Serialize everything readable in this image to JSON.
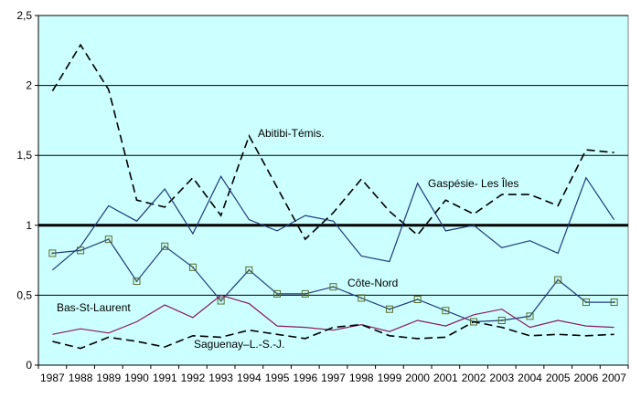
{
  "chart_data": {
    "type": "line",
    "title": "",
    "xlabel": "",
    "ylabel": "",
    "x": [
      "1987",
      "1988",
      "1989",
      "1990",
      "1991",
      "1992",
      "1993",
      "1994",
      "1995",
      "1996",
      "1997",
      "1998",
      "1999",
      "2000",
      "2001",
      "2002",
      "2003",
      "2004",
      "2005",
      "2006",
      "2007"
    ],
    "ylim": [
      0,
      2.5
    ],
    "yticks": [
      "0",
      "0,5",
      "1",
      "1,5",
      "2",
      "2,5"
    ],
    "grid": true,
    "background_color": "#ccffff",
    "series": [
      {
        "name": "Abitibi-Témis.",
        "color": "#000000",
        "style": "dashed",
        "values": [
          1.96,
          2.29,
          1.97,
          1.18,
          1.13,
          1.34,
          1.07,
          1.64,
          1.27,
          0.9,
          1.09,
          1.33,
          1.1,
          0.93,
          1.18,
          1.08,
          1.22,
          1.22,
          1.14,
          1.54,
          1.52
        ]
      },
      {
        "name": "Gaspésie- Les Îles",
        "color": "#1f3a78",
        "style": "solid",
        "values": [
          0.68,
          0.85,
          1.14,
          1.03,
          1.26,
          0.94,
          1.35,
          1.04,
          0.96,
          1.07,
          1.03,
          0.78,
          0.74,
          1.3,
          0.96,
          1.0,
          0.84,
          0.89,
          0.8,
          1.34,
          1.04
        ]
      },
      {
        "name": "Côte-Nord",
        "color": "#1f3a78",
        "style": "solid-square-markers",
        "values": [
          0.8,
          0.82,
          0.9,
          0.6,
          0.85,
          0.7,
          0.46,
          0.68,
          0.51,
          0.51,
          0.56,
          0.48,
          0.4,
          0.47,
          0.39,
          0.31,
          0.32,
          0.35,
          0.61,
          0.45,
          0.45
        ]
      },
      {
        "name": "Bas-St-Laurent",
        "color": "#8b1a5c",
        "style": "solid",
        "values": [
          0.22,
          0.26,
          0.23,
          0.31,
          0.43,
          0.34,
          0.5,
          0.44,
          0.28,
          0.27,
          0.25,
          0.29,
          0.24,
          0.32,
          0.28,
          0.36,
          0.4,
          0.27,
          0.32,
          0.28,
          0.27
        ]
      },
      {
        "name": "Saguenay–L.-S.-J.",
        "color": "#000000",
        "style": "dashed",
        "values": [
          0.17,
          0.12,
          0.2,
          0.17,
          0.13,
          0.21,
          0.2,
          0.25,
          0.22,
          0.19,
          0.27,
          0.29,
          0.21,
          0.19,
          0.2,
          0.31,
          0.27,
          0.21,
          0.22,
          0.21,
          0.22
        ]
      }
    ],
    "reference_line": {
      "value": 1,
      "color": "#000000"
    },
    "annotations": [
      {
        "text": "Abitibi-Témis.",
        "series": "Abitibi-Témis."
      },
      {
        "text": "Gaspésie- Les Îles",
        "series": "Gaspésie- Les Îles"
      },
      {
        "text": "Côte-Nord",
        "series": "Côte-Nord"
      },
      {
        "text": "Bas-St-Laurent",
        "series": "Bas-St-Laurent"
      },
      {
        "text": "Saguenay–L.-S.-J.",
        "series": "Saguenay–L.-S.-J."
      }
    ]
  }
}
